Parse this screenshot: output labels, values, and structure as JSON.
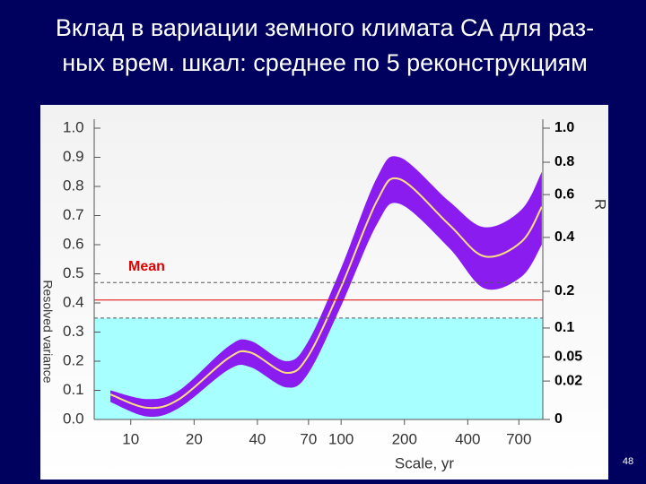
{
  "chart_data": {
    "type": "band_line",
    "title": [
      "Вклад в вариации земного климата СА для раз-",
      "ных врем. шкал: среднее по 5 реконструкциям"
    ],
    "xlabel": "Scale, yr",
    "ylabel": "Resolved variance",
    "y2label": "R",
    "page_number": "48",
    "xscale": "log",
    "xlim": [
      6.7,
      910
    ],
    "xticks": [
      10,
      20,
      40,
      70,
      100,
      200,
      400,
      700
    ],
    "ylim": [
      0,
      1
    ],
    "yticks": [
      {
        "value": 0,
        "label": "0.0"
      },
      0.1,
      0.2,
      0.3,
      0.4,
      0.5,
      0.6,
      0.7,
      0.8,
      0.9,
      {
        "value": 1,
        "label": "1.0"
      }
    ],
    "y2ticks": [
      {
        "value": 1,
        "label": "1.0",
        "position": 1
      },
      {
        "value": 0.8,
        "label": "0.8",
        "position": 0.883
      },
      {
        "value": 0.6,
        "label": "0.6",
        "position": 0.772
      },
      {
        "value": 0.4,
        "label": "0.4",
        "position": 0.625
      },
      {
        "value": 0.2,
        "label": "0.2",
        "position": 0.44
      },
      {
        "value": 0.1,
        "label": "0.1",
        "position": 0.314
      },
      {
        "value": 0.05,
        "label": "0.05",
        "position": 0.215
      },
      {
        "value": 0.02,
        "label": "0.02",
        "position": 0.132
      },
      {
        "value": 0,
        "label": "0",
        "position": 0
      }
    ],
    "mean": {
      "name": "Mean",
      "value": 0.41,
      "lower": 0.348,
      "upper": 0.47,
      "color": "#e00000"
    },
    "x": [
      8,
      12,
      17,
      29,
      37,
      55,
      70,
      100,
      148,
      190,
      325,
      480,
      720,
      900
    ],
    "series": [
      {
        "name": "mean",
        "color": "#ffe080",
        "values": [
          0.086,
          0.04,
          0.07,
          0.21,
          0.23,
          0.16,
          0.22,
          0.455,
          0.75,
          0.825,
          0.67,
          0.56,
          0.61,
          0.73
        ]
      },
      {
        "name": "upper",
        "color": "#8a1cf0",
        "values": [
          0.1,
          0.07,
          0.1,
          0.25,
          0.27,
          0.2,
          0.27,
          0.52,
          0.83,
          0.9,
          0.75,
          0.66,
          0.72,
          0.85
        ]
      },
      {
        "name": "lower",
        "color": "#8a1cf0",
        "values": [
          0.06,
          0.01,
          0.04,
          0.17,
          0.18,
          0.11,
          0.16,
          0.39,
          0.67,
          0.74,
          0.59,
          0.45,
          0.49,
          0.6
        ]
      }
    ]
  }
}
